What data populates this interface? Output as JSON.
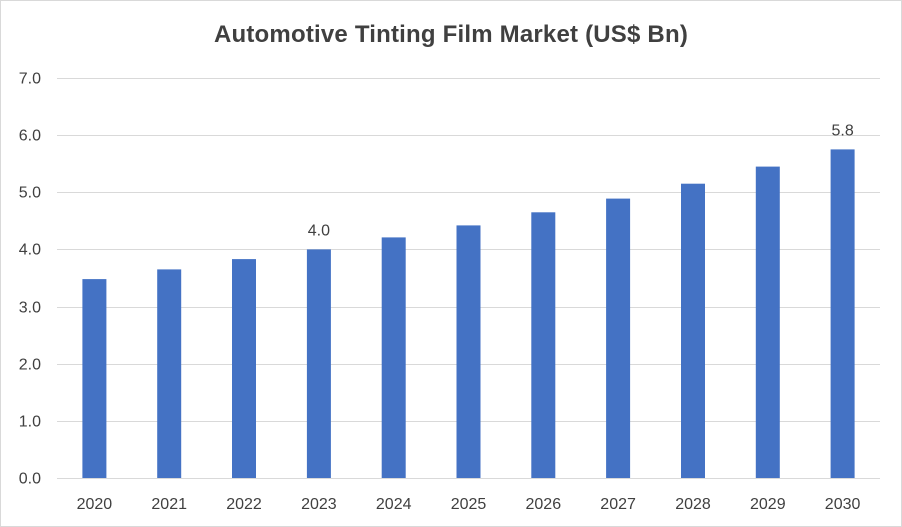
{
  "chart_data": {
    "type": "bar",
    "title": "Automotive Tinting Film Market (US$ Bn)",
    "categories": [
      "2020",
      "2021",
      "2022",
      "2023",
      "2024",
      "2025",
      "2026",
      "2027",
      "2028",
      "2029",
      "2030"
    ],
    "values": [
      3.48,
      3.65,
      3.83,
      4.0,
      4.21,
      4.42,
      4.65,
      4.89,
      5.15,
      5.45,
      5.75
    ],
    "data_labels": [
      {
        "category": "2023",
        "text": "4.0"
      },
      {
        "category": "2030",
        "text": "5.8"
      }
    ],
    "ylim": [
      0,
      7
    ],
    "yticks": [
      "0.0",
      "1.0",
      "2.0",
      "3.0",
      "4.0",
      "5.0",
      "6.0",
      "7.0"
    ],
    "xlabel": "",
    "ylabel": "",
    "grid": true,
    "legend": "none",
    "bar_color": "#4472c4"
  }
}
